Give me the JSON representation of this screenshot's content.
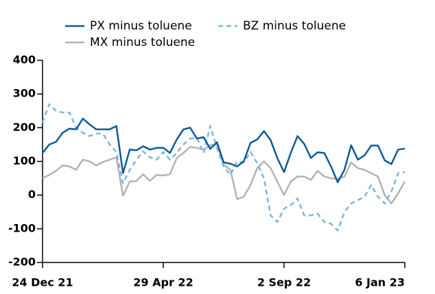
{
  "chart_data": {
    "type": "line",
    "categories": [
      "24 Dec 21",
      null,
      null,
      null,
      null,
      null,
      null,
      null,
      null,
      null,
      null,
      null,
      null,
      null,
      null,
      null,
      null,
      null,
      "29 Apr 22",
      null,
      null,
      null,
      null,
      null,
      null,
      null,
      null,
      null,
      null,
      null,
      null,
      null,
      null,
      null,
      null,
      null,
      "2 Sep 22",
      null,
      null,
      null,
      null,
      null,
      null,
      null,
      null,
      null,
      null,
      null,
      null,
      null,
      null,
      null,
      null,
      null,
      "6 Jan 23"
    ],
    "series": [
      {
        "name": "PX minus toluene",
        "color": "#0b5a9c",
        "dash": false,
        "values": [
          125,
          150,
          158,
          185,
          197,
          195,
          227,
          210,
          195,
          195,
          195,
          205,
          65,
          135,
          133,
          145,
          135,
          140,
          140,
          125,
          165,
          195,
          200,
          168,
          172,
          137,
          157,
          97,
          93,
          85,
          100,
          155,
          165,
          190,
          163,
          110,
          68,
          125,
          175,
          152,
          110,
          127,
          125,
          85,
          38,
          75,
          148,
          105,
          118,
          147,
          147,
          103,
          92,
          135,
          138
        ]
      },
      {
        "name": "BZ minus toluene",
        "color": "#80b3dc",
        "dash": true,
        "values": [
          215,
          270,
          250,
          245,
          245,
          200,
          185,
          175,
          183,
          182,
          150,
          128,
          35,
          75,
          105,
          130,
          112,
          105,
          128,
          105,
          125,
          150,
          168,
          170,
          125,
          205,
          140,
          85,
          60,
          100,
          97,
          128,
          95,
          50,
          -60,
          -80,
          -40,
          -30,
          -10,
          -60,
          -60,
          -55,
          -80,
          -85,
          -105,
          -50,
          -25,
          -15,
          -5,
          30,
          -5,
          -25,
          10,
          65,
          68
        ]
      },
      {
        "name": "MX minus toluene",
        "color": "#b3b3b3",
        "dash": false,
        "values": [
          50,
          60,
          72,
          88,
          85,
          75,
          105,
          100,
          88,
          98,
          105,
          112,
          -2,
          40,
          42,
          62,
          42,
          60,
          58,
          62,
          110,
          125,
          143,
          140,
          135,
          148,
          150,
          90,
          75,
          -12,
          -5,
          30,
          80,
          100,
          80,
          40,
          0,
          40,
          55,
          55,
          45,
          72,
          55,
          50,
          48,
          55,
          97,
          80,
          75,
          65,
          55,
          0,
          -25,
          5,
          40
        ]
      }
    ],
    "ylim": [
      -200,
      400
    ],
    "yticks": [
      -200,
      -100,
      0,
      100,
      200,
      300,
      400
    ],
    "grid": false,
    "legend": "top"
  }
}
